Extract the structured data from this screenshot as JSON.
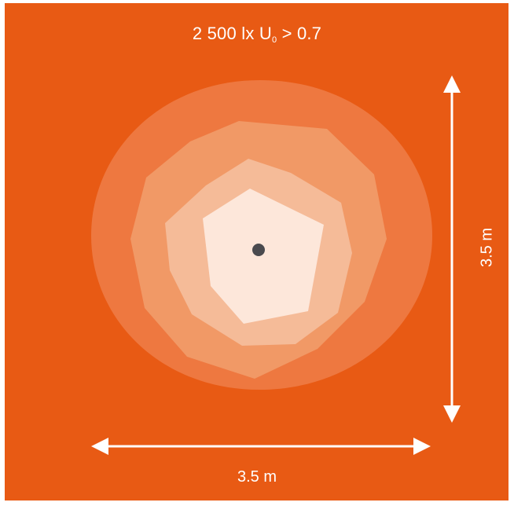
{
  "title": {
    "main": "2 500 lx U",
    "subscript": "0",
    "suffix": " > 0.7"
  },
  "dimensions": {
    "width_label": "3.5 m",
    "height_label": "3.5 m"
  },
  "colors": {
    "background": "#E85A14",
    "ring_1": "#EE7840",
    "ring_2": "#F19966",
    "ring_3": "#F5BB98",
    "core": "#FDE7DA",
    "center_dot": "#4A4A4E",
    "arrows": "#FFFFFF"
  },
  "illuminance_zones": [
    "zone-outer",
    "zone-2",
    "zone-3",
    "zone-core"
  ]
}
